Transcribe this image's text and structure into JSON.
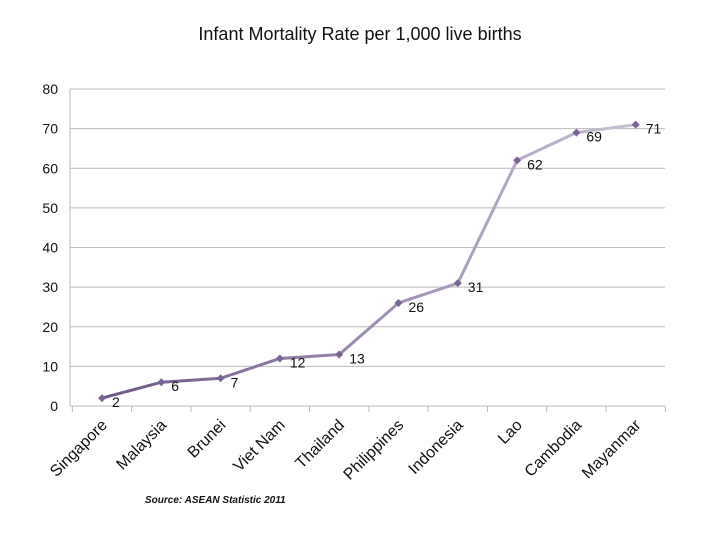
{
  "chart_data": {
    "type": "line",
    "title": "Infant Mortality Rate per 1,000 live births",
    "categories": [
      "Singapore",
      "Malaysia",
      "Brunei",
      "Viet Nam",
      "Thailand",
      "Philippines",
      "Indonesia",
      "Lao",
      "Cambodia",
      "Mayanmar"
    ],
    "series": [
      {
        "name": "Infant Mortality Rate",
        "values": [
          2,
          6,
          7,
          12,
          13,
          26,
          31,
          62,
          69,
          71
        ]
      }
    ],
    "ylim": [
      0,
      80
    ],
    "yticks": [
      0,
      10,
      20,
      30,
      40,
      50,
      60,
      70,
      80
    ],
    "grid": true,
    "xlabel": "",
    "ylabel": "",
    "source": "Source: ASEAN Statistic  2011",
    "colors": {
      "line_start": "#6e5688",
      "line_end": "#c8c0d4",
      "marker": "#7a6496",
      "grid": "#b9b9b9"
    }
  }
}
